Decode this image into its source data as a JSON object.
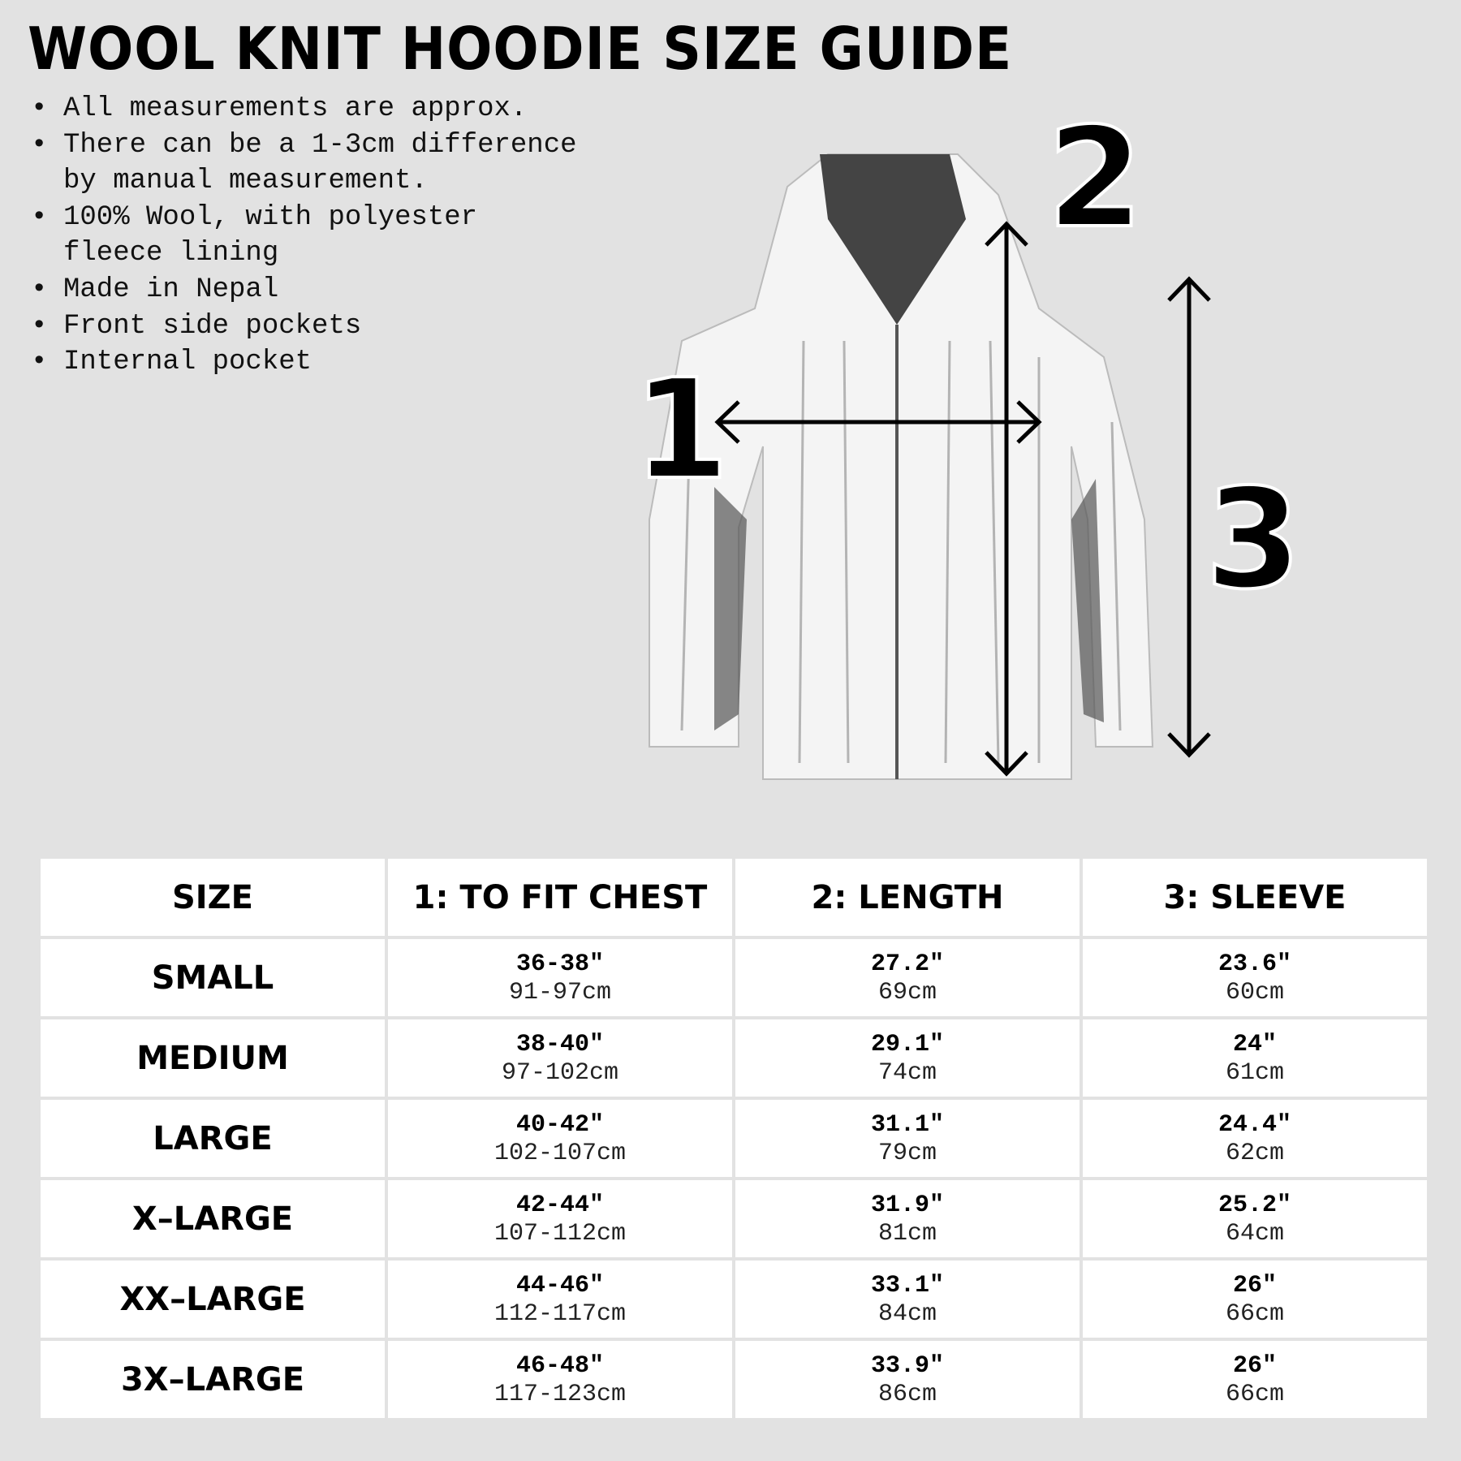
{
  "title": "WOOL KNIT HOODIE SIZE GUIDE",
  "notes": [
    "All measurements are approx.",
    "There can be a 1-3cm difference\nby manual measurement.",
    "100% Wool, with polyester\nfleece lining",
    "Made in Nepal",
    "Front side pockets",
    "Internal pocket"
  ],
  "diagram": {
    "label_chest": "1",
    "label_length": "2",
    "label_sleeve": "3"
  },
  "table": {
    "headers": [
      "SIZE",
      "1: TO FIT CHEST",
      "2: LENGTH",
      "3: SLEEVE"
    ],
    "rows": [
      {
        "size": "SMALL",
        "chest_in": "36-38″",
        "chest_cm": "91-97cm",
        "length_in": "27.2″",
        "length_cm": "69cm",
        "sleeve_in": "23.6″",
        "sleeve_cm": "60cm"
      },
      {
        "size": "MEDIUM",
        "chest_in": "38-40″",
        "chest_cm": "97-102cm",
        "length_in": "29.1″",
        "length_cm": "74cm",
        "sleeve_in": "24″",
        "sleeve_cm": "61cm"
      },
      {
        "size": "LARGE",
        "chest_in": "40-42″",
        "chest_cm": "102-107cm",
        "length_in": "31.1″",
        "length_cm": "79cm",
        "sleeve_in": "24.4″",
        "sleeve_cm": "62cm"
      },
      {
        "size": "X–LARGE",
        "chest_in": "42-44″",
        "chest_cm": "107-112cm",
        "length_in": "31.9″",
        "length_cm": "81cm",
        "sleeve_in": "25.2″",
        "sleeve_cm": "64cm"
      },
      {
        "size": "XX–LARGE",
        "chest_in": "44-46″",
        "chest_cm": "112-117cm",
        "length_in": "33.1″",
        "length_cm": "84cm",
        "sleeve_in": "26″",
        "sleeve_cm": "66cm"
      },
      {
        "size": "3X–LARGE",
        "chest_in": "46-48″",
        "chest_cm": "117-123cm",
        "length_in": "33.9″",
        "length_cm": "86cm",
        "sleeve_in": "26″",
        "sleeve_cm": "66cm"
      }
    ]
  }
}
